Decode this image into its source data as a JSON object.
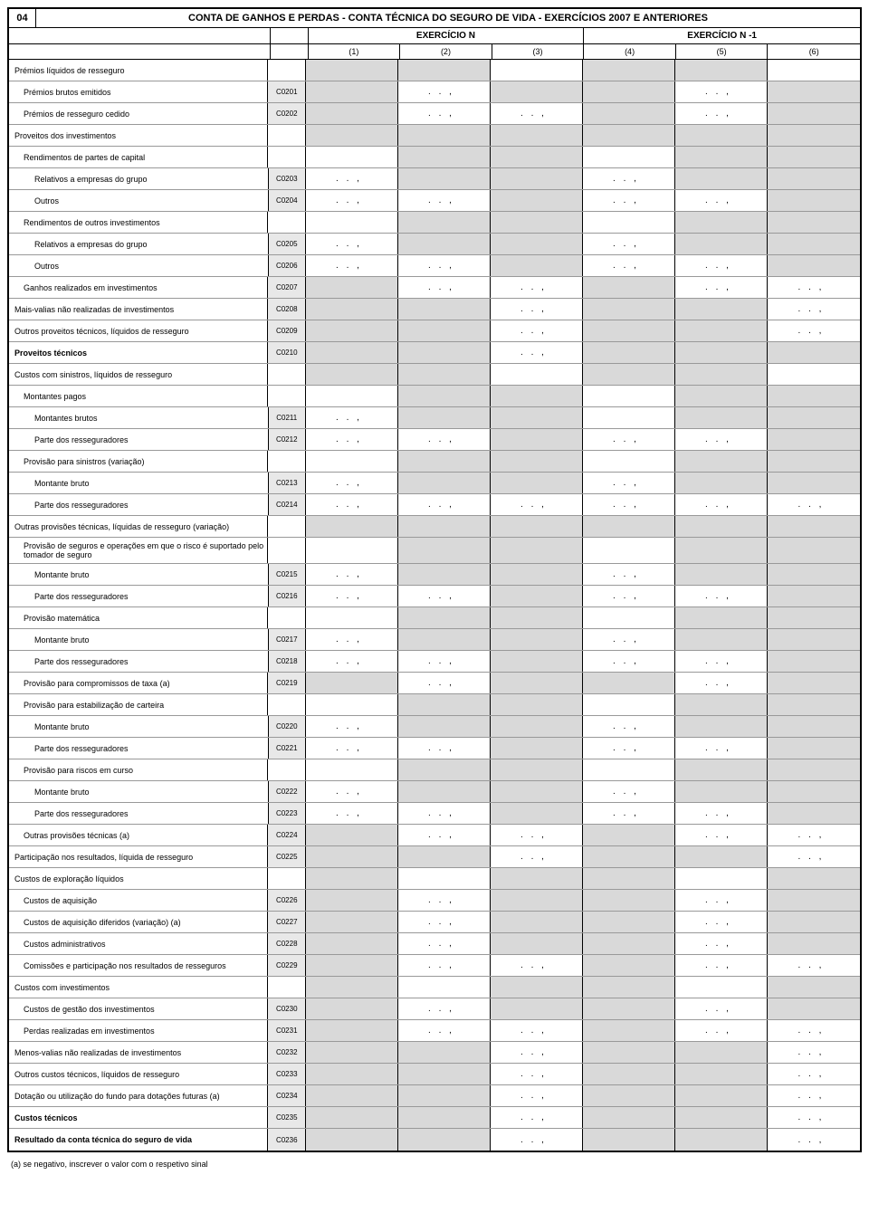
{
  "pageNumber": "04",
  "title": "CONTA DE GANHOS E PERDAS - CONTA TÉCNICA DO SEGURO DE VIDA - EXERCÍCIOS 2007 E ANTERIORES",
  "exerciseN": "EXERCÍCIO N",
  "exerciseN1": "EXERCÍCIO N -1",
  "colHeaders": [
    "(1)",
    "(2)",
    "(3)",
    "(4)",
    "(5)",
    "(6)"
  ],
  "dotsMark": ".   .   ,",
  "footnote": "(a) se negativo, inscrever o valor com o respetivo sinal",
  "rows": [
    {
      "label": "Prémios líquidos de resseguro",
      "indent": 0,
      "code": "",
      "cells": [
        "g",
        "g",
        "w",
        "g",
        "g",
        "w"
      ]
    },
    {
      "label": "Prémios brutos emitidos",
      "indent": 1,
      "code": "C0201",
      "cells": [
        "g",
        "d",
        "g",
        "g",
        "d",
        "g"
      ]
    },
    {
      "label": "Prémios de resseguro cedido",
      "indent": 1,
      "code": "C0202",
      "cells": [
        "g",
        "d",
        "d",
        "g",
        "d",
        "g"
      ]
    },
    {
      "label": "Proveitos dos investimentos",
      "indent": 0,
      "code": "",
      "cells": [
        "g",
        "g",
        "g",
        "g",
        "g",
        "g"
      ]
    },
    {
      "label": "Rendimentos de partes de capital",
      "indent": 1,
      "code": "",
      "cells": [
        "w",
        "g",
        "g",
        "w",
        "g",
        "g"
      ]
    },
    {
      "label": "Relativos a empresas do grupo",
      "indent": 2,
      "code": "C0203",
      "cells": [
        "d",
        "g",
        "g",
        "d",
        "g",
        "g"
      ]
    },
    {
      "label": "Outros",
      "indent": 2,
      "code": "C0204",
      "cells": [
        "d",
        "d",
        "g",
        "d",
        "d",
        "g"
      ]
    },
    {
      "label": "Rendimentos de outros investimentos",
      "indent": 1,
      "code": "",
      "cells": [
        "w",
        "g",
        "g",
        "w",
        "g",
        "g"
      ]
    },
    {
      "label": "Relativos a empresas do grupo",
      "indent": 2,
      "code": "C0205",
      "cells": [
        "d",
        "g",
        "g",
        "d",
        "g",
        "g"
      ]
    },
    {
      "label": "Outros",
      "indent": 2,
      "code": "C0206",
      "cells": [
        "d",
        "d",
        "g",
        "d",
        "d",
        "g"
      ]
    },
    {
      "label": "Ganhos realizados em investimentos",
      "indent": 1,
      "code": "C0207",
      "cells": [
        "g",
        "d",
        "d",
        "g",
        "d",
        "d"
      ]
    },
    {
      "label": "Mais-valias não realizadas de investimentos",
      "indent": 0,
      "code": "C0208",
      "cells": [
        "g",
        "g",
        "d",
        "g",
        "g",
        "d"
      ]
    },
    {
      "label": "Outros proveitos técnicos, líquidos de resseguro",
      "indent": 0,
      "code": "C0209",
      "cells": [
        "g",
        "g",
        "d",
        "g",
        "g",
        "d"
      ]
    },
    {
      "label": "Proveitos técnicos",
      "indent": 0,
      "bold": true,
      "code": "C0210",
      "cells": [
        "g",
        "g",
        "d",
        "g",
        "g",
        "g"
      ]
    },
    {
      "label": "Custos com sinistros, líquidos de resseguro",
      "indent": 0,
      "code": "",
      "cells": [
        "g",
        "g",
        "w",
        "g",
        "g",
        "w"
      ]
    },
    {
      "label": "Montantes pagos",
      "indent": 1,
      "code": "",
      "cells": [
        "w",
        "g",
        "g",
        "w",
        "g",
        "g"
      ]
    },
    {
      "label": "Montantes brutos",
      "indent": 2,
      "code": "C0211",
      "cells": [
        "d",
        "g",
        "g",
        "w",
        "g",
        "g"
      ]
    },
    {
      "label": "Parte dos resseguradores",
      "indent": 2,
      "code": "C0212",
      "cells": [
        "d",
        "d",
        "g",
        "d",
        "d",
        "g"
      ]
    },
    {
      "label": "Provisão para sinistros (variação)",
      "indent": 1,
      "code": "",
      "cells": [
        "w",
        "g",
        "g",
        "w",
        "g",
        "g"
      ]
    },
    {
      "label": "Montante bruto",
      "indent": 2,
      "code": "C0213",
      "cells": [
        "d",
        "g",
        "g",
        "d",
        "g",
        "g"
      ]
    },
    {
      "label": "Parte dos resseguradores",
      "indent": 2,
      "code": "C0214",
      "cells": [
        "d",
        "d",
        "d",
        "d",
        "d",
        "d"
      ]
    },
    {
      "label": "Outras provisões técnicas, líquidas de resseguro (variação)",
      "indent": 0,
      "code": "",
      "cells": [
        "g",
        "g",
        "g",
        "g",
        "g",
        "g"
      ]
    },
    {
      "label": "Provisão de seguros e operações em que o risco é suportado pelo tomador de seguro",
      "indent": 1,
      "code": "",
      "cells": [
        "w",
        "g",
        "g",
        "w",
        "g",
        "g"
      ]
    },
    {
      "label": "Montante bruto",
      "indent": 2,
      "code": "C0215",
      "cells": [
        "d",
        "g",
        "g",
        "d",
        "g",
        "g"
      ]
    },
    {
      "label": "Parte dos resseguradores",
      "indent": 2,
      "code": "C0216",
      "cells": [
        "d",
        "d",
        "g",
        "d",
        "d",
        "g"
      ]
    },
    {
      "label": "Provisão matemática",
      "indent": 1,
      "code": "",
      "cells": [
        "w",
        "g",
        "g",
        "w",
        "g",
        "g"
      ]
    },
    {
      "label": "Montante bruto",
      "indent": 2,
      "code": "C0217",
      "cells": [
        "d",
        "g",
        "g",
        "d",
        "g",
        "g"
      ]
    },
    {
      "label": "Parte dos resseguradores",
      "indent": 2,
      "code": "C0218",
      "cells": [
        "d",
        "d",
        "g",
        "d",
        "d",
        "g"
      ]
    },
    {
      "label": "Provisão para compromissos de taxa (a)",
      "indent": 1,
      "code": "C0219",
      "cells": [
        "g",
        "d",
        "g",
        "g",
        "d",
        "g"
      ]
    },
    {
      "label": "Provisão para estabilização de carteira",
      "indent": 1,
      "code": "",
      "cells": [
        "w",
        "g",
        "g",
        "w",
        "g",
        "g"
      ]
    },
    {
      "label": "Montante bruto",
      "indent": 2,
      "code": "C0220",
      "cells": [
        "d",
        "g",
        "g",
        "d",
        "g",
        "g"
      ]
    },
    {
      "label": "Parte dos resseguradores",
      "indent": 2,
      "code": "C0221",
      "cells": [
        "d",
        "d",
        "g",
        "d",
        "d",
        "g"
      ]
    },
    {
      "label": "Provisão para riscos em curso",
      "indent": 1,
      "code": "",
      "cells": [
        "w",
        "g",
        "g",
        "w",
        "g",
        "g"
      ]
    },
    {
      "label": "Montante bruto",
      "indent": 2,
      "code": "C0222",
      "cells": [
        "d",
        "g",
        "g",
        "d",
        "g",
        "g"
      ]
    },
    {
      "label": "Parte dos resseguradores",
      "indent": 2,
      "code": "C0223",
      "cells": [
        "d",
        "d",
        "g",
        "d",
        "d",
        "g"
      ]
    },
    {
      "label": "Outras provisões técnicas (a)",
      "indent": 1,
      "code": "C0224",
      "cells": [
        "g",
        "d",
        "d",
        "g",
        "d",
        "d"
      ]
    },
    {
      "label": "Participação nos resultados, líquida de resseguro",
      "indent": 0,
      "code": "C0225",
      "cells": [
        "g",
        "g",
        "d",
        "g",
        "g",
        "d"
      ]
    },
    {
      "label": "Custos de exploração líquidos",
      "indent": 0,
      "code": "",
      "cells": [
        "g",
        "w",
        "g",
        "g",
        "w",
        "g"
      ]
    },
    {
      "label": "Custos de aquisição",
      "indent": 1,
      "code": "C0226",
      "cells": [
        "g",
        "d",
        "g",
        "g",
        "d",
        "g"
      ]
    },
    {
      "label": "Custos de aquisição diferidos (variação) (a)",
      "indent": 1,
      "code": "C0227",
      "cells": [
        "g",
        "d",
        "g",
        "g",
        "d",
        "g"
      ]
    },
    {
      "label": "Custos administrativos",
      "indent": 1,
      "code": "C0228",
      "cells": [
        "g",
        "d",
        "g",
        "g",
        "d",
        "g"
      ]
    },
    {
      "label": "Comissões e participação nos resultados de resseguros",
      "indent": 1,
      "code": "C0229",
      "cells": [
        "g",
        "d",
        "d",
        "g",
        "d",
        "d"
      ]
    },
    {
      "label": "Custos com investimentos",
      "indent": 0,
      "code": "",
      "cells": [
        "g",
        "w",
        "g",
        "g",
        "w",
        "g"
      ]
    },
    {
      "label": "Custos de gestão dos investimentos",
      "indent": 1,
      "code": "C0230",
      "cells": [
        "g",
        "d",
        "g",
        "g",
        "d",
        "g"
      ]
    },
    {
      "label": "Perdas realizadas em investimentos",
      "indent": 1,
      "code": "C0231",
      "cells": [
        "g",
        "d",
        "d",
        "g",
        "d",
        "d"
      ]
    },
    {
      "label": "Menos-valias não realizadas de investimentos",
      "indent": 0,
      "code": "C0232",
      "cells": [
        "g",
        "g",
        "d",
        "g",
        "g",
        "d"
      ]
    },
    {
      "label": "Outros custos técnicos, líquidos de resseguro",
      "indent": 0,
      "code": "C0233",
      "cells": [
        "g",
        "g",
        "d",
        "g",
        "g",
        "d"
      ]
    },
    {
      "label": "Dotação ou utilização do fundo para dotações futuras (a)",
      "indent": 0,
      "code": "C0234",
      "cells": [
        "g",
        "g",
        "d",
        "g",
        "g",
        "d"
      ]
    },
    {
      "label": "Custos técnicos",
      "indent": 0,
      "bold": true,
      "code": "C0235",
      "cells": [
        "g",
        "g",
        "d",
        "g",
        "g",
        "d"
      ]
    },
    {
      "label": "Resultado da conta técnica do seguro de vida",
      "indent": 0,
      "bold": true,
      "code": "C0236",
      "cells": [
        "g",
        "g",
        "d",
        "g",
        "g",
        "d"
      ]
    }
  ]
}
